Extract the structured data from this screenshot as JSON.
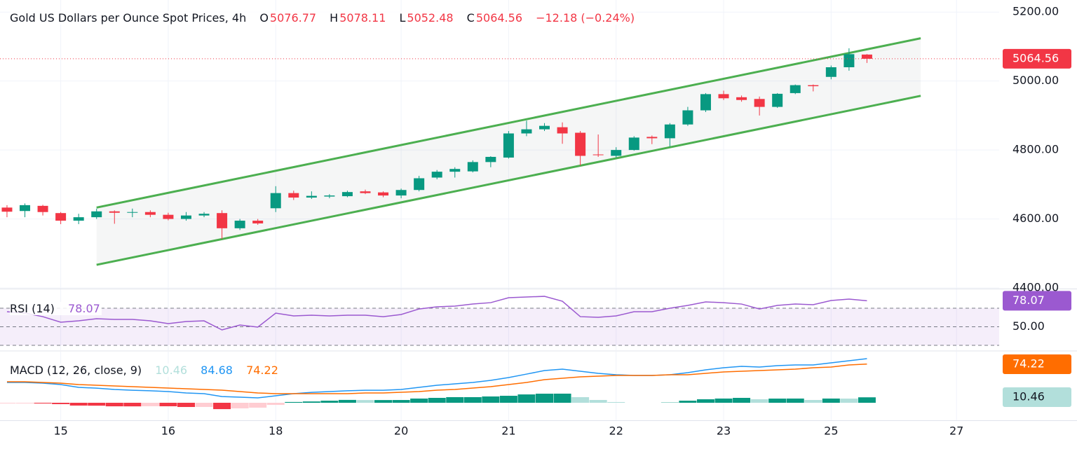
{
  "chart_data": [
    {
      "type": "candlestick",
      "title": "Gold US Dollars per Ounce Spot Prices, 4h",
      "ohlc_letters": [
        "O",
        "H",
        "L",
        "C"
      ],
      "change_label": "−12.18 (−0.24%)",
      "x": [
        0,
        1,
        2,
        3,
        4,
        5,
        6,
        7,
        8,
        9,
        10,
        11,
        12,
        13,
        14,
        15,
        16,
        17,
        18,
        19,
        20,
        21,
        22,
        23,
        24,
        25,
        26,
        27,
        28,
        29,
        30,
        31,
        32,
        33,
        34,
        35,
        36,
        37,
        38,
        39,
        40,
        41,
        42,
        43,
        44,
        45,
        46,
        47,
        48
      ],
      "open": [
        4633,
        4623,
        4638,
        4617,
        4595,
        4605,
        4622,
        4618,
        4620,
        4612,
        4600,
        4610,
        4617,
        4573,
        4595,
        4631,
        4675,
        4662,
        4665,
        4666,
        4680,
        4677,
        4668,
        4684,
        4720,
        4737,
        4738,
        4765,
        4778,
        4848,
        4860,
        4866,
        4850,
        4787,
        4783,
        4800,
        4838,
        4834,
        4874,
        4915,
        4962,
        4953,
        4948,
        4925,
        4965,
        4988,
        5012,
        5040,
        5076.77
      ],
      "high": [
        4640,
        4645,
        4641,
        4620,
        4615,
        4630,
        4625,
        4630,
        4625,
        4618,
        4620,
        4620,
        4625,
        4600,
        4600,
        4695,
        4682,
        4680,
        4672,
        4682,
        4685,
        4680,
        4688,
        4725,
        4742,
        4750,
        4770,
        4782,
        4855,
        4885,
        4878,
        4880,
        4855,
        4845,
        4808,
        4840,
        4842,
        4878,
        4925,
        4965,
        4972,
        4958,
        4955,
        4965,
        4990,
        4990,
        5045,
        5095,
        5078.11
      ],
      "low": [
        4605,
        4605,
        4610,
        4585,
        4585,
        4600,
        4586,
        4605,
        4605,
        4596,
        4595,
        4605,
        4542,
        4568,
        4583,
        4620,
        4655,
        4658,
        4660,
        4663,
        4672,
        4663,
        4660,
        4680,
        4715,
        4720,
        4735,
        4750,
        4775,
        4840,
        4855,
        4818,
        4755,
        4780,
        4778,
        4798,
        4817,
        4810,
        4870,
        4910,
        4945,
        4940,
        4900,
        4922,
        4962,
        4970,
        5005,
        5030,
        5052.48
      ],
      "close": [
        4621,
        4640,
        4620,
        4595,
        4605,
        4622,
        4618,
        4620,
        4612,
        4600,
        4610,
        4615,
        4573,
        4595,
        4587,
        4675,
        4662,
        4667,
        4668,
        4678,
        4675,
        4668,
        4684,
        4718,
        4737,
        4745,
        4765,
        4780,
        4848,
        4860,
        4870,
        4848,
        4783,
        4785,
        4800,
        4836,
        4834,
        4874,
        4915,
        4962,
        4950,
        4945,
        4925,
        4963,
        4988,
        4985,
        5040,
        5078,
        5064.56
      ],
      "colors": {
        "up": "#089981",
        "down": "#f23645"
      },
      "channel": {
        "x": [
          5,
          51
        ],
        "upper": [
          4633,
          5124
        ],
        "lower": [
          4467,
          4957
        ],
        "color": "#4caf50"
      },
      "xlim": [
        -0.39,
        55.38
      ],
      "xticks": [
        {
          "value": 3,
          "label": "15"
        },
        {
          "value": 9,
          "label": "16"
        },
        {
          "value": 15,
          "label": "18"
        },
        {
          "value": 22,
          "label": "20"
        },
        {
          "value": 28,
          "label": "21"
        },
        {
          "value": 34,
          "label": "22"
        },
        {
          "value": 40,
          "label": "23"
        },
        {
          "value": 46,
          "label": "25"
        },
        {
          "value": 53,
          "label": "27"
        }
      ],
      "ylim": [
        4398,
        5235
      ],
      "yticks": [
        {
          "value": 4400,
          "label": "4400.00"
        },
        {
          "value": 4600,
          "label": "4600.00"
        },
        {
          "value": 4800,
          "label": "4800.00"
        },
        {
          "value": 5000,
          "label": "5000.00"
        },
        {
          "value": 5200,
          "label": "5200.00"
        }
      ],
      "grid": true
    },
    {
      "type": "line",
      "title": "RSI (14)",
      "color": "#9b59d0",
      "values": [
        66.2,
        64.7,
        60.9,
        54.9,
        56.4,
        58.7,
        57.9,
        57.9,
        56.4,
        53.4,
        55.7,
        56.4,
        46.6,
        51.9,
        49.6,
        64.7,
        61.7,
        62.5,
        61.7,
        62.5,
        62.5,
        60.9,
        63.2,
        69.2,
        71.5,
        72.3,
        74.5,
        76.0,
        81.3,
        82.1,
        82.8,
        77.5,
        60.9,
        60.2,
        61.7,
        66.2,
        66.2,
        70.0,
        73.0,
        76.8,
        76.0,
        74.5,
        69.2,
        73.0,
        74.5,
        73.8,
        78.3,
        79.8,
        78.07
      ],
      "bands": [
        30,
        70
      ],
      "ylim": [
        24.7,
        90.4
      ],
      "yticks": [
        {
          "value": 50,
          "label": "50.00"
        }
      ]
    },
    {
      "type": "macd",
      "title": "MACD (12, 26, close, 9)",
      "histogram": [
        -1.3,
        -1.3,
        -1.4,
        -2.6,
        -5.4,
        -5.6,
        -6.8,
        -6.9,
        -6.6,
        -6.7,
        -8.1,
        -8.0,
        -12.2,
        -10.7,
        -9.4,
        -4.1,
        1.5,
        2.5,
        4.0,
        5.5,
        5.2,
        5.2,
        5.3,
        8.1,
        9.4,
        10.8,
        10.8,
        12.1,
        13.4,
        16.0,
        17.4,
        17.5,
        10.8,
        5.4,
        1.4,
        0,
        0,
        0.5,
        4.0,
        6.7,
        8.1,
        9.4,
        6.7,
        8.0,
        8.1,
        5.4,
        8.1,
        8.0,
        10.46
      ],
      "macd": [
        39,
        39,
        37.6,
        35,
        29.6,
        28,
        25.5,
        24,
        23,
        21.5,
        18.8,
        17.5,
        12,
        10.8,
        9.4,
        13.4,
        17.5,
        20,
        21.5,
        23,
        24,
        24,
        25.5,
        29.6,
        33.6,
        36.3,
        39,
        43,
        48.4,
        55,
        61.8,
        64.5,
        60.5,
        56.5,
        53.8,
        52.4,
        52.4,
        53.8,
        57.8,
        63.2,
        67.2,
        69.9,
        68.5,
        71.2,
        72.6,
        72.6,
        76.6,
        80.6,
        84.68
      ],
      "signal": [
        40.3,
        40.3,
        39,
        37.6,
        35,
        33.6,
        32.3,
        30.9,
        29.6,
        28.2,
        26.9,
        25.5,
        24.2,
        21.5,
        18.8,
        17.5,
        17.5,
        17.5,
        17.5,
        17.5,
        18.8,
        18.8,
        20.2,
        21.5,
        24.2,
        25.5,
        28.2,
        30.9,
        35,
        39,
        44.4,
        47,
        49.7,
        51.1,
        52.4,
        52.4,
        52.4,
        53.8,
        53.8,
        56.5,
        59.1,
        60.5,
        61.8,
        63.2,
        64.5,
        67.2,
        68.5,
        72.6,
        74.22
      ],
      "colors": {
        "macd": "#2196f3",
        "signal": "#ff6d00",
        "hist_up_rising": "#089981",
        "hist_up_falling": "#b2dfdb",
        "hist_down_falling": "#f23645",
        "hist_down_rising": "#ffcdd2"
      },
      "ylim": [
        -33.6,
        98.1
      ]
    }
  ]
}
